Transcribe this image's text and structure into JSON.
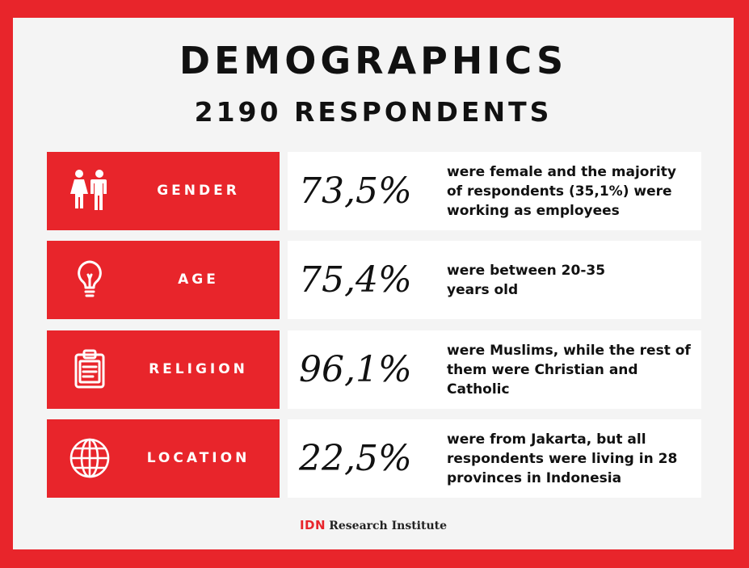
{
  "header": {
    "title": "DEMOGRAPHICS",
    "subtitle": "2190 RESPONDENTS"
  },
  "rows": [
    {
      "icon": "people-icon",
      "label": "GENDER",
      "value": "73,5%",
      "description": "were female and the majority of respondents (35,1%) were working as employees"
    },
    {
      "icon": "lightbulb-icon",
      "label": "AGE",
      "value": "75,4%",
      "description": "were between 20-35 years old"
    },
    {
      "icon": "clipboard-icon",
      "label": "RELIGION",
      "value": "96,1%",
      "description": "were Muslims, while the rest of them were Christian and Catholic"
    },
    {
      "icon": "globe-icon",
      "label": "LOCATION",
      "value": "22,5%",
      "description": "were from Jakarta, but all respondents were living in 28 provinces in Indonesia"
    }
  ],
  "footer": {
    "brand": "IDN",
    "organization": "Research Institute"
  },
  "colors": {
    "accent": "#e8252b",
    "panel": "#f4f4f4",
    "card": "#ffffff",
    "text": "#111111"
  }
}
